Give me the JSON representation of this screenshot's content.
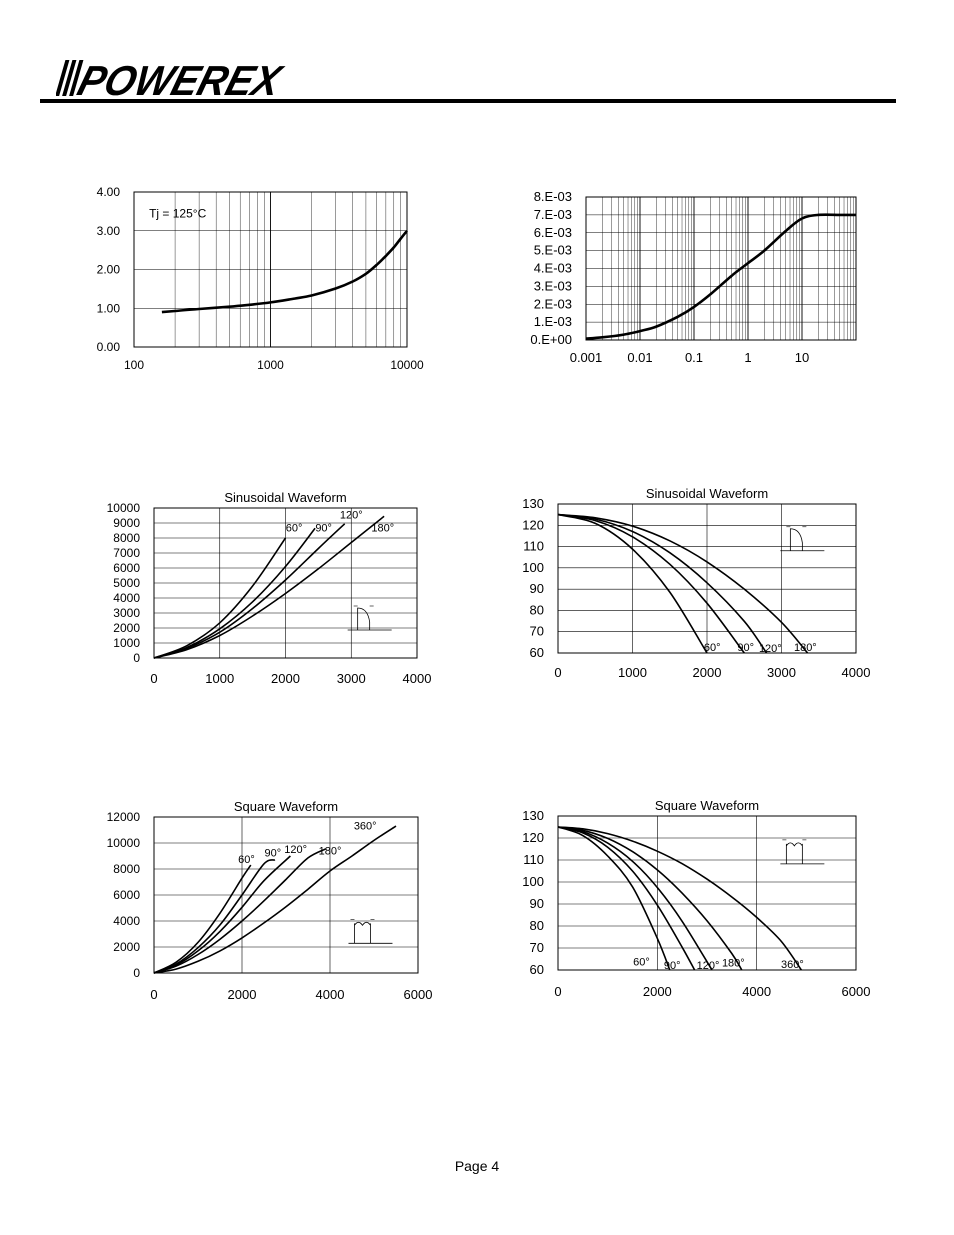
{
  "header": {
    "logo_text": "POWEREX",
    "page_label": "Page 4"
  },
  "colors": {
    "curve": "#000000",
    "grid": "#000000",
    "background": "#ffffff"
  },
  "chart_data": [
    {
      "id": "chart1",
      "type": "line",
      "x_scale": "log",
      "xlim": [
        100,
        10000
      ],
      "ylim": [
        0,
        4
      ],
      "x_ticks": [
        100,
        1000,
        10000
      ],
      "x_tick_labels": [
        "100",
        "1000",
        "10000"
      ],
      "y_ticks": [
        0,
        1,
        2,
        3,
        4
      ],
      "y_tick_labels": [
        "0.00",
        "1.00",
        "2.00",
        "3.00",
        "4.00"
      ],
      "grid": "log-minor-vertical, major-horizontal",
      "annotations": [
        {
          "text": "Tj = 125°C",
          "x": 200,
          "y": 3.45
        }
      ],
      "series": [
        {
          "x": [
            160,
            200,
            300,
            500,
            700,
            1000,
            1500,
            2000,
            3000,
            4000,
            5000,
            6000,
            7000,
            8000,
            9000,
            10000
          ],
          "y": [
            0.9,
            0.93,
            0.98,
            1.04,
            1.09,
            1.15,
            1.25,
            1.33,
            1.51,
            1.69,
            1.89,
            2.12,
            2.35,
            2.57,
            2.8,
            3.0
          ]
        }
      ]
    },
    {
      "id": "chart2",
      "type": "line",
      "x_scale": "log",
      "xlim": [
        0.001,
        100
      ],
      "ylim": [
        0,
        0.008
      ],
      "x_ticks": [
        0.001,
        0.01,
        0.1,
        1,
        10
      ],
      "x_tick_labels": [
        "0.001",
        "0.01",
        "0.1",
        "1",
        "10"
      ],
      "y_ticks": [
        0,
        0.001,
        0.002,
        0.003,
        0.004,
        0.005,
        0.006,
        0.007,
        0.008
      ],
      "y_tick_labels": [
        "0.E+00",
        "1.E-03",
        "2.E-03",
        "3.E-03",
        "4.E-03",
        "5.E-03",
        "6.E-03",
        "7.E-03",
        "8.E-03"
      ],
      "grid": "major",
      "series": [
        {
          "x": [
            0.001,
            0.002,
            0.005,
            0.01,
            0.02,
            0.05,
            0.1,
            0.2,
            0.5,
            1,
            2,
            5,
            10,
            20,
            50,
            100
          ],
          "y": [
            8e-05,
            0.00015,
            0.0003,
            0.0005,
            0.00075,
            0.0013,
            0.00185,
            0.00255,
            0.0036,
            0.0043,
            0.005,
            0.0061,
            0.0068,
            0.007,
            0.007,
            0.007
          ]
        }
      ]
    },
    {
      "id": "chart3",
      "type": "line",
      "title": "Sinusoidal Waveform",
      "xlim": [
        0,
        4000
      ],
      "ylim": [
        0,
        10000
      ],
      "x_ticks": [
        0,
        1000,
        2000,
        3000,
        4000
      ],
      "x_tick_labels": [
        "0",
        "1000",
        "2000",
        "3000",
        "4000"
      ],
      "y_ticks": [
        0,
        1000,
        2000,
        3000,
        4000,
        5000,
        6000,
        7000,
        8000,
        9000,
        10000
      ],
      "y_tick_labels": [
        "0",
        "1000",
        "2000",
        "3000",
        "4000",
        "5000",
        "6000",
        "7000",
        "8000",
        "9000",
        "10000"
      ],
      "grid": "major",
      "series": [
        {
          "label": "60°",
          "x": [
            0,
            500,
            1000,
            1500,
            2000
          ],
          "y": [
            0,
            820,
            2350,
            4800,
            8000
          ],
          "label_at": [
            2130,
            8450
          ]
        },
        {
          "label": "90°",
          "x": [
            0,
            500,
            1000,
            1500,
            2000,
            2450
          ],
          "y": [
            0,
            700,
            1950,
            3750,
            6100,
            8650
          ],
          "label_at": [
            2580,
            8450
          ]
        },
        {
          "label": "120°",
          "x": [
            0,
            500,
            1000,
            1500,
            2000,
            2500,
            2900
          ],
          "y": [
            0,
            640,
            1720,
            3300,
            5200,
            7300,
            8950
          ],
          "label_at": [
            3000,
            9300
          ]
        },
        {
          "label": "180°",
          "x": [
            0,
            500,
            1000,
            1500,
            2000,
            2500,
            3000,
            3500
          ],
          "y": [
            0,
            560,
            1500,
            2800,
            4300,
            5950,
            7700,
            9450
          ],
          "label_at": [
            3480,
            8450
          ]
        }
      ],
      "inset": "half-sine-conduction-icon"
    },
    {
      "id": "chart4",
      "type": "line",
      "title": "Sinusoidal Waveform",
      "xlim": [
        0,
        4000
      ],
      "ylim": [
        60,
        130
      ],
      "x_ticks": [
        0,
        1000,
        2000,
        3000,
        4000
      ],
      "x_tick_labels": [
        "0",
        "1000",
        "2000",
        "3000",
        "4000"
      ],
      "y_ticks": [
        60,
        70,
        80,
        90,
        100,
        110,
        120,
        130
      ],
      "y_tick_labels": [
        "60",
        "70",
        "80",
        "90",
        "100",
        "110",
        "120",
        "130"
      ],
      "grid": "major",
      "series": [
        {
          "label": "60°",
          "x": [
            0,
            500,
            1000,
            1500,
            2000
          ],
          "y": [
            125,
            120.9,
            108.8,
            88.6,
            60
          ],
          "label_at": [
            2070,
            61
          ]
        },
        {
          "label": "90°",
          "x": [
            0,
            500,
            1000,
            1500,
            2000,
            2500
          ],
          "y": [
            125,
            122.2,
            114.6,
            101.7,
            83.4,
            60
          ],
          "label_at": [
            2520,
            61
          ]
        },
        {
          "label": "120°",
          "x": [
            0,
            500,
            1000,
            1500,
            2000,
            2500,
            2800
          ],
          "y": [
            125,
            122.9,
            117.1,
            107.1,
            93.0,
            74.9,
            60
          ],
          "label_at": [
            2850,
            60.5
          ]
        },
        {
          "label": "180°",
          "x": [
            0,
            500,
            1000,
            1500,
            2000,
            2500,
            3000,
            3350
          ],
          "y": [
            125,
            123.5,
            119.6,
            112.7,
            102.8,
            90.0,
            74.4,
            60
          ],
          "label_at": [
            3320,
            61
          ]
        }
      ],
      "inset": "half-sine-conduction-icon"
    },
    {
      "id": "chart5",
      "type": "line",
      "title": "Square Waveform",
      "xlim": [
        0,
        6000
      ],
      "ylim": [
        0,
        12000
      ],
      "x_ticks": [
        0,
        2000,
        4000,
        6000
      ],
      "x_tick_labels": [
        "0",
        "2000",
        "4000",
        "6000"
      ],
      "y_ticks": [
        0,
        2000,
        4000,
        6000,
        8000,
        10000,
        12000
      ],
      "y_tick_labels": [
        "0",
        "2000",
        "4000",
        "6000",
        "8000",
        "10000",
        "12000"
      ],
      "grid": "major",
      "series": [
        {
          "label": "60°",
          "x": [
            0,
            500,
            1000,
            1500,
            2000,
            2200
          ],
          "y": [
            0,
            820,
            2350,
            4600,
            7300,
            8300
          ],
          "label_at": [
            2100,
            8450
          ]
        },
        {
          "label": "90°",
          "x": [
            0,
            500,
            1000,
            1500,
            2000,
            2500,
            2750
          ],
          "y": [
            0,
            680,
            1950,
            3700,
            6000,
            8400,
            8700
          ],
          "label_at": [
            2700,
            8950
          ]
        },
        {
          "label": "120°",
          "x": [
            0,
            500,
            1000,
            1500,
            2000,
            2500,
            3100
          ],
          "y": [
            0,
            600,
            1700,
            3200,
            5050,
            7100,
            9000
          ],
          "label_at": [
            3220,
            9250
          ]
        },
        {
          "label": "180°",
          "x": [
            0,
            500,
            1000,
            1500,
            2000,
            2500,
            3000,
            3500,
            3900
          ],
          "y": [
            0,
            520,
            1420,
            2600,
            4000,
            5550,
            7200,
            8850,
            9550
          ],
          "label_at": [
            4000,
            9100
          ]
        },
        {
          "label": "360°",
          "x": [
            0,
            500,
            1000,
            1500,
            2000,
            2500,
            3000,
            3500,
            4000,
            4500,
            5000,
            5500
          ],
          "y": [
            0,
            300,
            900,
            1700,
            2700,
            3850,
            5100,
            6450,
            7850,
            9000,
            10200,
            11300
          ],
          "label_at": [
            4800,
            11050
          ]
        }
      ],
      "inset": "square-pulse-conduction-icon"
    },
    {
      "id": "chart6",
      "type": "line",
      "title": "Square Waveform",
      "xlim": [
        0,
        6000
      ],
      "ylim": [
        60,
        130
      ],
      "x_ticks": [
        0,
        2000,
        4000,
        6000
      ],
      "x_tick_labels": [
        "0",
        "2000",
        "4000",
        "6000"
      ],
      "y_ticks": [
        60,
        70,
        80,
        90,
        100,
        110,
        120,
        130
      ],
      "y_tick_labels": [
        "60",
        "70",
        "80",
        "90",
        "100",
        "110",
        "120",
        "130"
      ],
      "grid": "major",
      "series": [
        {
          "label": "60°",
          "x": [
            0,
            500,
            1000,
            1500,
            2000,
            2250
          ],
          "y": [
            125,
            121.1,
            111.8,
            97.8,
            74.4,
            60
          ],
          "label_at": [
            1680,
            62
          ]
        },
        {
          "label": "90°",
          "x": [
            0,
            500,
            1000,
            1500,
            2000,
            2500,
            2750
          ],
          "y": [
            125,
            122.3,
            115.8,
            105.0,
            89.5,
            70.3,
            60
          ],
          "label_at": [
            2300,
            60.5
          ]
        },
        {
          "label": "120°",
          "x": [
            0,
            500,
            1000,
            1500,
            2000,
            2500,
            3100
          ],
          "y": [
            125,
            122.9,
            117.7,
            109.4,
            97.5,
            82.1,
            60
          ],
          "label_at": [
            3020,
            60.5
          ]
        },
        {
          "label": "180°",
          "x": [
            0,
            500,
            1000,
            1500,
            2000,
            2500,
            3000,
            3500,
            3700
          ],
          "y": [
            125,
            123.5,
            119.8,
            113.8,
            105.5,
            94.9,
            82.4,
            67.5,
            60
          ],
          "label_at": [
            3530,
            61.5
          ]
        },
        {
          "label": "360°",
          "x": [
            0,
            500,
            1000,
            1500,
            2000,
            2500,
            3000,
            3500,
            4000,
            4500,
            4900
          ],
          "y": [
            125,
            124.2,
            122.0,
            118.6,
            114.0,
            108.3,
            101.3,
            93.2,
            83.9,
            72.9,
            60
          ],
          "label_at": [
            4720,
            61
          ]
        }
      ],
      "inset": "square-pulse-conduction-icon"
    }
  ]
}
